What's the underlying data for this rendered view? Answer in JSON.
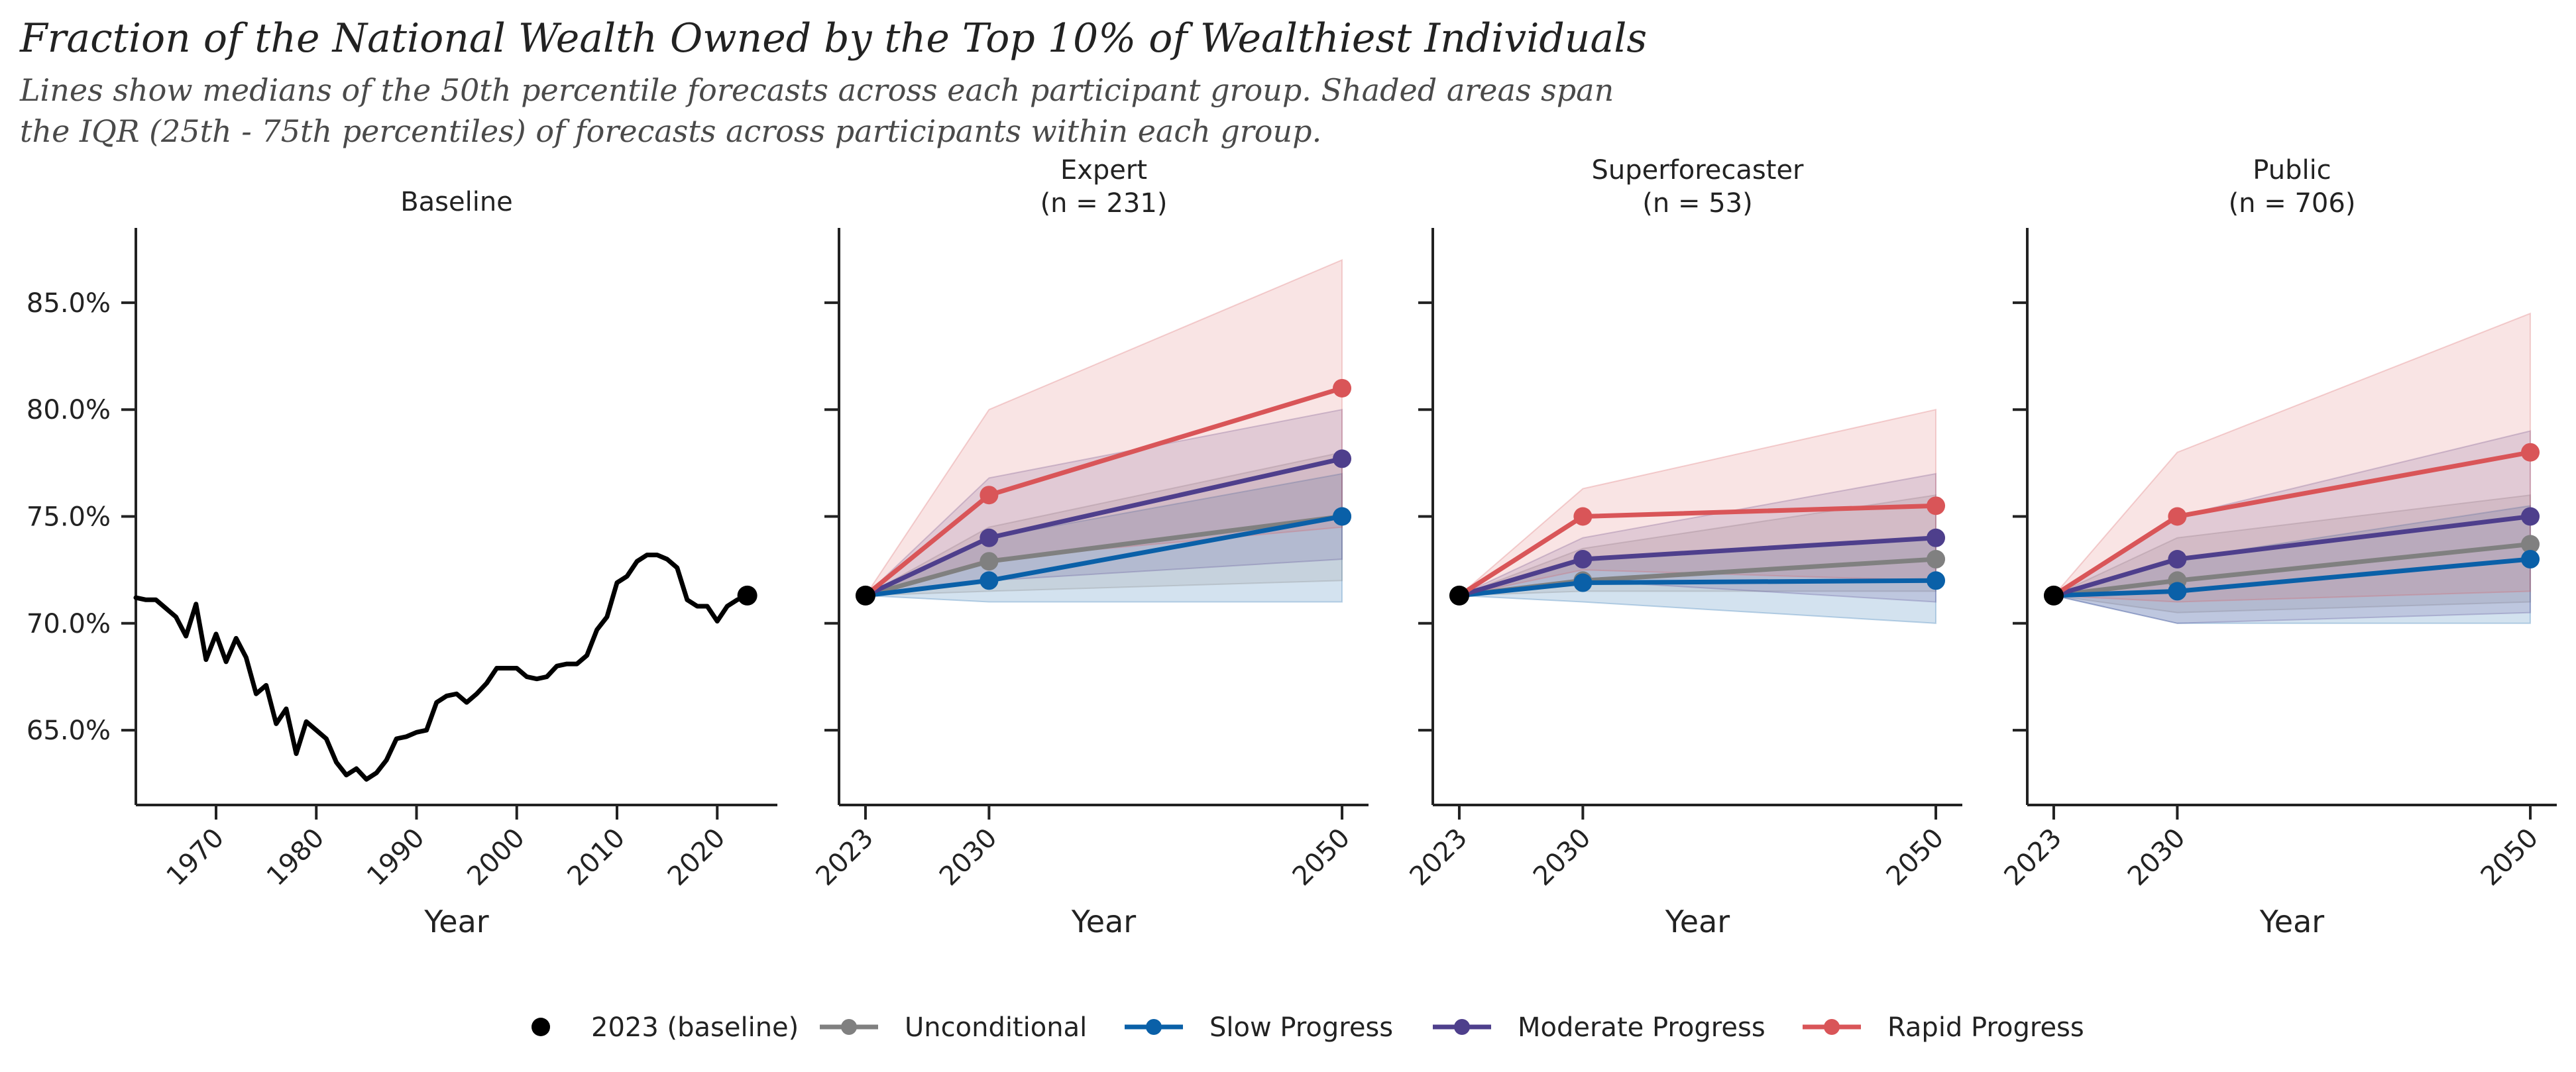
{
  "figure": {
    "title": "Fraction of the National Wealth Owned by the Top 10% of Wealthiest Individuals",
    "subtitle_lines": [
      "Lines show medians of the 50th percentile forecasts across each participant group. Shaded areas span",
      "the IQR (25th - 75th percentiles) of forecasts across participants within each group."
    ]
  },
  "colors": {
    "baseline": "#000000",
    "unconditional": "#808080",
    "slow": "#0a60a8",
    "moderate": "#4e3f8c",
    "rapid": "#d95558",
    "slow_band": "#c6d9ee",
    "axis": "#222222",
    "text": "#222222",
    "subtitle": "#4a4a4a"
  },
  "legend": {
    "items": [
      {
        "key": "baseline",
        "label": "2023 (baseline)",
        "style": "dot"
      },
      {
        "key": "unconditional",
        "label": "Unconditional",
        "style": "line"
      },
      {
        "key": "slow",
        "label": "Slow Progress",
        "style": "line"
      },
      {
        "key": "moderate",
        "label": "Moderate Progress",
        "style": "line"
      },
      {
        "key": "rapid",
        "label": "Rapid Progress",
        "style": "line"
      }
    ]
  },
  "chart_data": [
    {
      "type": "line",
      "panel": "baseline",
      "title": [
        "Baseline"
      ],
      "xlabel": "Year",
      "xlim": [
        1962,
        2026
      ],
      "ylim": [
        61.5,
        88.5
      ],
      "xticks": [
        1970,
        1980,
        1990,
        2000,
        2010,
        2020
      ],
      "yticks": [
        65,
        70,
        75,
        80,
        85
      ],
      "ytick_labels": [
        "65.0%",
        "70.0%",
        "75.0%",
        "80.0%",
        "85.0%"
      ],
      "series": [
        {
          "key": "baseline",
          "x": [
            1962,
            1963,
            1964,
            1965,
            1966,
            1967,
            1968,
            1969,
            1970,
            1971,
            1972,
            1973,
            1974,
            1975,
            1976,
            1977,
            1978,
            1979,
            1980,
            1981,
            1982,
            1983,
            1984,
            1985,
            1986,
            1987,
            1988,
            1989,
            1990,
            1991,
            1992,
            1993,
            1994,
            1995,
            1996,
            1997,
            1998,
            1999,
            2000,
            2001,
            2002,
            2003,
            2004,
            2005,
            2006,
            2007,
            2008,
            2009,
            2010,
            2011,
            2012,
            2013,
            2014,
            2015,
            2016,
            2017,
            2018,
            2019,
            2020,
            2021,
            2022,
            2023
          ],
          "y": [
            71.2,
            71.1,
            71.1,
            70.7,
            70.3,
            69.4,
            70.9,
            68.3,
            69.5,
            68.2,
            69.3,
            68.4,
            66.7,
            67.1,
            65.3,
            66,
            63.9,
            65.4,
            65,
            64.6,
            63.5,
            62.9,
            63.2,
            62.7,
            63,
            63.6,
            64.6,
            64.7,
            64.9,
            65,
            66.3,
            66.6,
            66.7,
            66.3,
            66.7,
            67.2,
            67.9,
            67.9,
            67.9,
            67.5,
            67.4,
            67.5,
            68,
            68.1,
            68.1,
            68.5,
            69.7,
            70.3,
            71.9,
            72.2,
            72.9,
            73.2,
            73.2,
            73,
            72.6,
            71.1,
            70.8,
            70.8,
            70.1,
            70.8,
            71.1,
            71.3
          ]
        }
      ],
      "markers": [
        {
          "key": "baseline",
          "x": 2023,
          "y": 71.3
        }
      ]
    },
    {
      "type": "line",
      "panel": "expert",
      "title": [
        "Expert",
        "(n = 231)"
      ],
      "xlabel": "Year",
      "xlim": [
        2021.5,
        2051.5
      ],
      "ylim": [
        61.5,
        88.5
      ],
      "xticks": [
        2023,
        2030,
        2050
      ],
      "yticks": [
        65,
        70,
        75,
        80,
        85
      ],
      "series": [
        {
          "key": "rapid",
          "name": "Rapid Progress",
          "x": [
            2023,
            2030,
            2050
          ],
          "y": [
            71.3,
            76.0,
            81.0
          ],
          "q25": [
            71.3,
            73.0,
            74.5
          ],
          "q75": [
            71.3,
            80.0,
            87.0
          ]
        },
        {
          "key": "moderate",
          "name": "Moderate Progress",
          "x": [
            2023,
            2030,
            2050
          ],
          "y": [
            71.3,
            74.0,
            77.7
          ],
          "q25": [
            71.3,
            72.0,
            73.0
          ],
          "q75": [
            71.3,
            76.8,
            80.0
          ]
        },
        {
          "key": "unconditional",
          "name": "Unconditional",
          "x": [
            2023,
            2030,
            2050
          ],
          "y": [
            71.3,
            72.9,
            75.0
          ],
          "q25": [
            71.3,
            71.5,
            72.0
          ],
          "q75": [
            71.3,
            74.5,
            78.0
          ]
        },
        {
          "key": "slow",
          "name": "Slow Progress",
          "x": [
            2023,
            2030,
            2050
          ],
          "y": [
            71.3,
            72.0,
            75.0
          ],
          "q25": [
            71.3,
            71.0,
            71.0
          ],
          "q75": [
            71.3,
            74.0,
            77.0
          ]
        }
      ],
      "markers": [
        {
          "key": "baseline",
          "x": 2023,
          "y": 71.3
        }
      ]
    },
    {
      "type": "line",
      "panel": "superforecaster",
      "title": [
        "Superforecaster",
        "(n = 53)"
      ],
      "xlabel": "Year",
      "xlim": [
        2021.5,
        2051.5
      ],
      "ylim": [
        61.5,
        88.5
      ],
      "xticks": [
        2023,
        2030,
        2050
      ],
      "yticks": [
        65,
        70,
        75,
        80,
        85
      ],
      "series": [
        {
          "key": "rapid",
          "name": "Rapid Progress",
          "x": [
            2023,
            2030,
            2050
          ],
          "y": [
            71.3,
            75.0,
            75.5
          ],
          "q25": [
            71.3,
            72.5,
            72.0
          ],
          "q75": [
            71.3,
            76.3,
            80.0
          ]
        },
        {
          "key": "moderate",
          "name": "Moderate Progress",
          "x": [
            2023,
            2030,
            2050
          ],
          "y": [
            71.3,
            73.0,
            74.0
          ],
          "q25": [
            71.3,
            72.0,
            71.0
          ],
          "q75": [
            71.3,
            74.0,
            77.0
          ]
        },
        {
          "key": "unconditional",
          "name": "Unconditional",
          "x": [
            2023,
            2030,
            2050
          ],
          "y": [
            71.3,
            72.0,
            73.0
          ],
          "q25": [
            71.3,
            71.5,
            71.5
          ],
          "q75": [
            71.3,
            73.5,
            76.0
          ]
        },
        {
          "key": "slow",
          "name": "Slow Progress",
          "x": [
            2023,
            2030,
            2050
          ],
          "y": [
            71.3,
            71.9,
            72.0
          ],
          "q25": [
            71.3,
            71.0,
            70.0
          ],
          "q75": [
            71.3,
            73.0,
            74.0
          ]
        }
      ],
      "markers": [
        {
          "key": "baseline",
          "x": 2023,
          "y": 71.3
        }
      ]
    },
    {
      "type": "line",
      "panel": "public",
      "title": [
        "Public",
        "(n = 706)"
      ],
      "xlabel": "Year",
      "xlim": [
        2021.5,
        2051.5
      ],
      "ylim": [
        61.5,
        88.5
      ],
      "xticks": [
        2023,
        2030,
        2050
      ],
      "yticks": [
        65,
        70,
        75,
        80,
        85
      ],
      "series": [
        {
          "key": "rapid",
          "name": "Rapid Progress",
          "x": [
            2023,
            2030,
            2050
          ],
          "y": [
            71.3,
            75.0,
            78.0
          ],
          "q25": [
            71.3,
            71.0,
            71.5
          ],
          "q75": [
            71.3,
            78.0,
            84.5
          ]
        },
        {
          "key": "moderate",
          "name": "Moderate Progress",
          "x": [
            2023,
            2030,
            2050
          ],
          "y": [
            71.3,
            73.0,
            75.0
          ],
          "q25": [
            71.3,
            70.0,
            70.5
          ],
          "q75": [
            71.3,
            75.0,
            79.0
          ]
        },
        {
          "key": "unconditional",
          "name": "Unconditional",
          "x": [
            2023,
            2030,
            2050
          ],
          "y": [
            71.3,
            72.0,
            73.7
          ],
          "q25": [
            71.3,
            70.5,
            71.0
          ],
          "q75": [
            71.3,
            74.0,
            76.0
          ]
        },
        {
          "key": "slow",
          "name": "Slow Progress",
          "x": [
            2023,
            2030,
            2050
          ],
          "y": [
            71.3,
            71.5,
            73.0
          ],
          "q25": [
            71.3,
            70.0,
            70.0
          ],
          "q75": [
            71.3,
            73.0,
            75.5
          ]
        }
      ],
      "markers": [
        {
          "key": "baseline",
          "x": 2023,
          "y": 71.3
        }
      ]
    }
  ]
}
